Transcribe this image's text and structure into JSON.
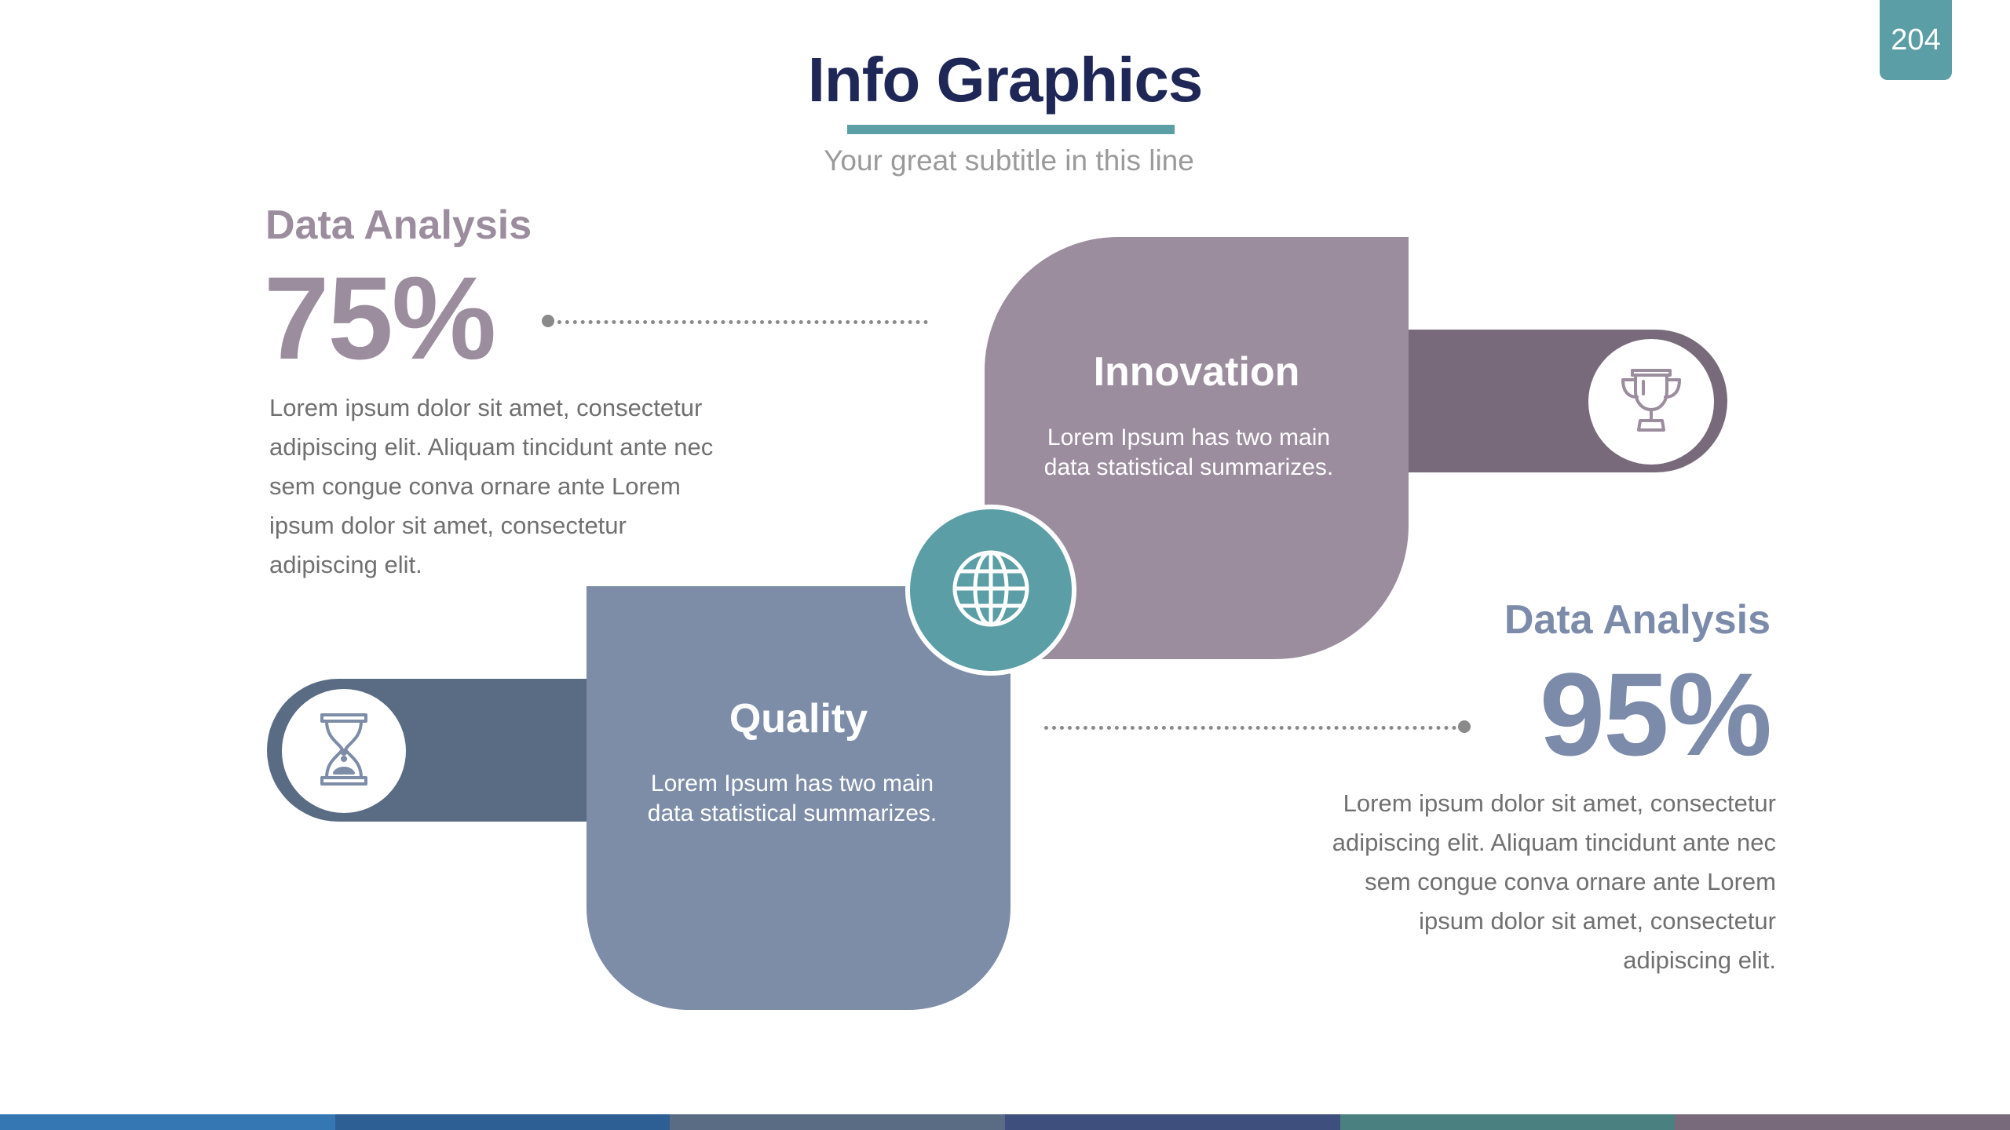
{
  "page_number": "204",
  "header": {
    "title": "Info Graphics",
    "subtitle": "Your great subtitle in this line"
  },
  "stats": [
    {
      "heading": "Data Analysis",
      "value": "75%",
      "text": "Lorem ipsum dolor sit amet, consectetur adipiscing elit. Aliquam tincidunt ante nec sem congue conva ornare ante Lorem ipsum dolor sit amet, consectetur adipiscing elit."
    },
    {
      "heading": "Data Analysis",
      "value": "95%",
      "text": "Lorem ipsum dolor sit amet, consectetur adipiscing elit. Aliquam tincidunt ante nec sem congue conva ornare ante Lorem ipsum dolor sit amet, consectetur adipiscing elit."
    }
  ],
  "cards": [
    {
      "title": "Innovation",
      "text_line1": "Lorem Ipsum has two main",
      "text_line2": "data statistical summarizes.",
      "icon": "trophy-icon"
    },
    {
      "title": "Quality",
      "text_line1": "Lorem Ipsum has two main",
      "text_line2": "data statistical summarizes.",
      "icon": "hourglass-icon"
    }
  ],
  "center_icon": "globe-icon",
  "colors": {
    "title": "#1f2757",
    "accent_teal": "#5b9ea6",
    "innovation_card": "#9b8c9e",
    "innovation_pill": "#786a7b",
    "quality_card": "#7d8ca7",
    "quality_pill": "#5a6b84",
    "strip": [
      "#3477b3",
      "#2d5f94",
      "#5a6b84",
      "#3e4f7d",
      "#4a8080",
      "#786a7b"
    ]
  }
}
